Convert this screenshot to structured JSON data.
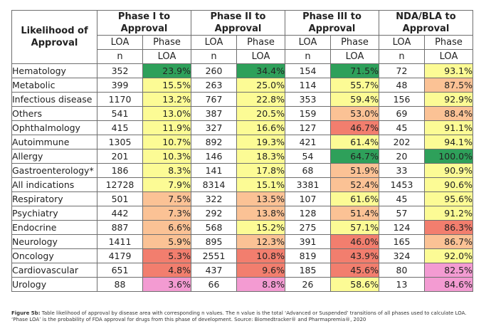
{
  "header": {
    "first_col": "Likelihood of Approval",
    "phases": [
      "Phase I to Approval",
      "Phase II to Approval",
      "Phase III to Approval",
      "NDA/BLA to Approval"
    ],
    "sub_n_line1": "LOA",
    "sub_n_line2": "n",
    "sub_p_line1": "Phase",
    "sub_p_line2": "LOA"
  },
  "rows": [
    {
      "disease": "Hematology",
      "cells": [
        [
          "352",
          "23.9%",
          "#2ea05a"
        ],
        [
          "260",
          "34.4%",
          "#2ea05a"
        ],
        [
          "154",
          "71.5%",
          "#2ea05a"
        ],
        [
          "72",
          "93.1%",
          "#fcfb95"
        ]
      ]
    },
    {
      "disease": "Metabolic",
      "cells": [
        [
          "399",
          "15.5%",
          "#fcfb95"
        ],
        [
          "263",
          "25.0%",
          "#fcfb95"
        ],
        [
          "114",
          "55.7%",
          "#fcfb95"
        ],
        [
          "48",
          "87.5%",
          "#fbc295"
        ]
      ]
    },
    {
      "disease": "Infectious disease",
      "cells": [
        [
          "1170",
          "13.2%",
          "#fcfb95"
        ],
        [
          "767",
          "22.8%",
          "#fcfb95"
        ],
        [
          "353",
          "59.4%",
          "#fcfb95"
        ],
        [
          "156",
          "92.9%",
          "#fcfb95"
        ]
      ]
    },
    {
      "disease": "Others",
      "cells": [
        [
          "541",
          "13.0%",
          "#fcfb95"
        ],
        [
          "387",
          "20.5%",
          "#fcfb95"
        ],
        [
          "159",
          "53.0%",
          "#fbc295"
        ],
        [
          "69",
          "88.4%",
          "#fbc295"
        ]
      ]
    },
    {
      "disease": "Ophthalmology",
      "cells": [
        [
          "415",
          "11.9%",
          "#fcfb95"
        ],
        [
          "327",
          "16.6%",
          "#fcfb95"
        ],
        [
          "127",
          "46.7%",
          "#f27e6e"
        ],
        [
          "45",
          "91.1%",
          "#fcfb95"
        ]
      ]
    },
    {
      "disease": "Autoimmune",
      "cells": [
        [
          "1305",
          "10.7%",
          "#fcfb95"
        ],
        [
          "892",
          "19.3%",
          "#fcfb95"
        ],
        [
          "421",
          "61.4%",
          "#fcfb95"
        ],
        [
          "202",
          "94.1%",
          "#fcfb95"
        ]
      ]
    },
    {
      "disease": "Allergy",
      "cells": [
        [
          "201",
          "10.3%",
          "#fcfb95"
        ],
        [
          "146",
          "18.3%",
          "#fcfb95"
        ],
        [
          "54",
          "64.7%",
          "#2ea05a"
        ],
        [
          "20",
          "100.0%",
          "#2ea05a"
        ]
      ]
    },
    {
      "disease": "Gastroenterology*",
      "cells": [
        [
          "186",
          "8.3%",
          "#fcfb95"
        ],
        [
          "141",
          "17.8%",
          "#fcfb95"
        ],
        [
          "68",
          "51.9%",
          "#fbc295"
        ],
        [
          "33",
          "90.9%",
          "#fcfb95"
        ]
      ]
    },
    {
      "disease": "All indications",
      "cells": [
        [
          "12728",
          "7.9%",
          "#fcfb95"
        ],
        [
          "8314",
          "15.1%",
          "#fcfb95"
        ],
        [
          "3381",
          "52.4%",
          "#fbc295"
        ],
        [
          "1453",
          "90.6%",
          "#fcfb95"
        ]
      ]
    },
    {
      "disease": "Respiratory",
      "cells": [
        [
          "501",
          "7.5%",
          "#fbc295"
        ],
        [
          "322",
          "13.5%",
          "#fbc295"
        ],
        [
          "107",
          "61.6%",
          "#fcfb95"
        ],
        [
          "45",
          "95.6%",
          "#fcfb95"
        ]
      ]
    },
    {
      "disease": "Psychiatry",
      "cells": [
        [
          "442",
          "7.3%",
          "#fbc295"
        ],
        [
          "292",
          "13.8%",
          "#fbc295"
        ],
        [
          "128",
          "51.4%",
          "#fbc295"
        ],
        [
          "57",
          "91.2%",
          "#fcfb95"
        ]
      ]
    },
    {
      "disease": "Endocrine",
      "cells": [
        [
          "887",
          "6.6%",
          "#fbc295"
        ],
        [
          "568",
          "15.2%",
          "#fcfb95"
        ],
        [
          "275",
          "57.1%",
          "#fcfb95"
        ],
        [
          "124",
          "86.3%",
          "#f27e6e"
        ]
      ]
    },
    {
      "disease": "Neurology",
      "cells": [
        [
          "1411",
          "5.9%",
          "#fbc295"
        ],
        [
          "895",
          "12.3%",
          "#fbc295"
        ],
        [
          "391",
          "46.0%",
          "#f27e6e"
        ],
        [
          "165",
          "86.7%",
          "#fbc295"
        ]
      ]
    },
    {
      "disease": "Oncology",
      "cells": [
        [
          "4179",
          "5.3%",
          "#f27e6e"
        ],
        [
          "2551",
          "10.8%",
          "#f27e6e"
        ],
        [
          "819",
          "43.9%",
          "#f27e6e"
        ],
        [
          "324",
          "92.0%",
          "#fcfb95"
        ]
      ]
    },
    {
      "disease": "Cardiovascular",
      "cells": [
        [
          "651",
          "4.8%",
          "#f27e6e"
        ],
        [
          "437",
          "9.6%",
          "#f27e6e"
        ],
        [
          "185",
          "45.6%",
          "#f27e6e"
        ],
        [
          "80",
          "82.5%",
          "#f39bd2"
        ]
      ]
    },
    {
      "disease": "Urology",
      "cells": [
        [
          "88",
          "3.6%",
          "#f39bd2"
        ],
        [
          "66",
          "8.8%",
          "#f39bd2"
        ],
        [
          "26",
          "58.6%",
          "#fcfb95"
        ],
        [
          "13",
          "84.6%",
          "#f39bd2"
        ]
      ]
    }
  ],
  "caption": {
    "label": "Figure 5b:",
    "text": " Table likelihood of approval by disease area with corresponding n values. The n value is the total ‘Advanced or Suspended’ transitions of all phases used to calculate LOA. ‘Phase LOA’ is the probability of FDA approval for drugs from this phase of development. Source: Biomedtracker® and Pharmapremia®, 2020"
  }
}
